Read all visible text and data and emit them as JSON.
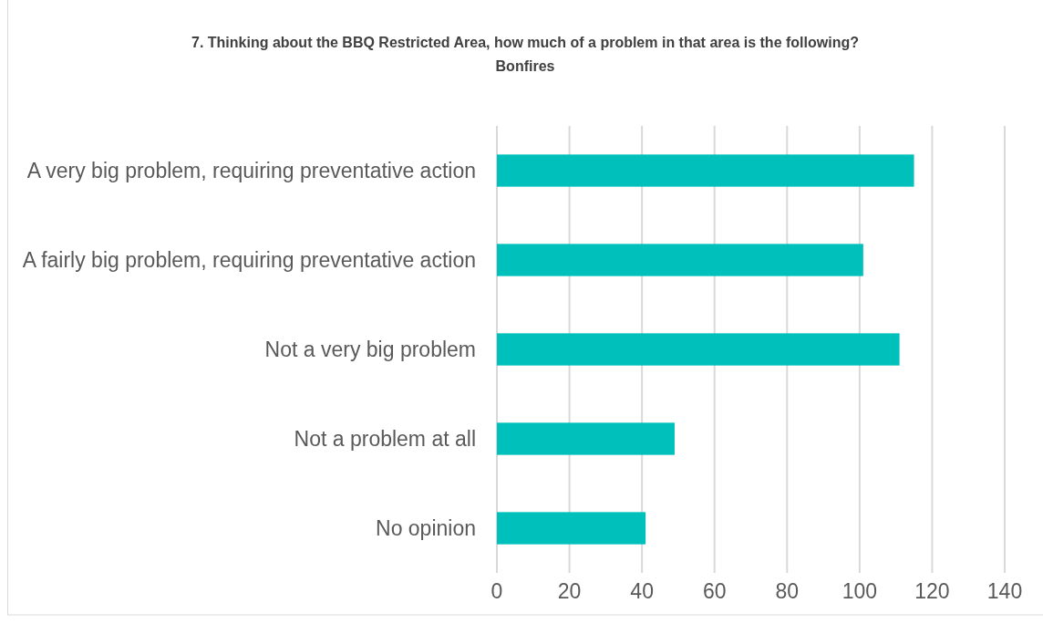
{
  "chart_data": {
    "type": "bar",
    "orientation": "horizontal",
    "title": "7. Thinking about the BBQ Restricted Area, how much of a problem in that area is the following?",
    "subtitle": "Bonfires",
    "categories": [
      "A very big problem, requiring preventative action",
      "A fairly big problem, requiring preventative action",
      "Not a very big problem",
      "Not a problem at all",
      "No opinion"
    ],
    "values": [
      115,
      101,
      111,
      49,
      41
    ],
    "color": "#00c0bb",
    "xlim": [
      0,
      140
    ],
    "xticks": [
      0,
      20,
      40,
      60,
      80,
      100,
      120,
      140
    ],
    "grid": "x"
  }
}
